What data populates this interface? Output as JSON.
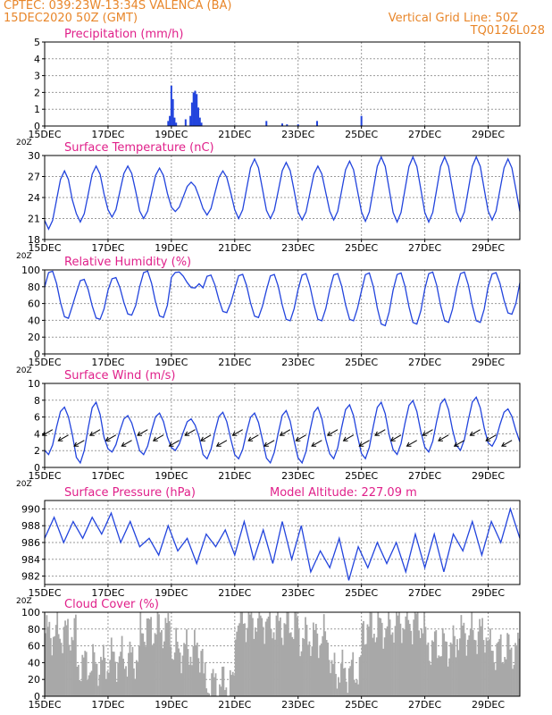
{
  "header": {
    "line1_left": "CPTEC:   039:23W-13:34S   VALENCA (BA)",
    "line2_left": "15DEC2020 50Z (GMT)",
    "line2_right": "Vertical Grid Line: 50Z",
    "line3_right": "TQ0126L028"
  },
  "colors": {
    "header": "#e8862a",
    "title": "#e0208a",
    "series": "#2244dd",
    "cloud": "#a8a8a8",
    "grid": "#9a9a9a"
  },
  "x_axis": {
    "tick_labels": [
      "15DEC",
      "17DEC",
      "19DEC",
      "21DEC",
      "23DEC",
      "25DEC",
      "27DEC",
      "29DEC"
    ],
    "tick_days": [
      0,
      2,
      4,
      6,
      8,
      10,
      12,
      14
    ],
    "xlim_days": [
      0,
      15
    ],
    "cut_label": "20Z"
  },
  "chart_data": [
    {
      "id": "precip",
      "type": "bar",
      "title": "Precipitation (mm/h)",
      "ylim": [
        0,
        5
      ],
      "yticks": [
        0,
        1,
        2,
        3,
        4,
        5
      ],
      "x_days": [
        3.9,
        3.95,
        4.0,
        4.05,
        4.1,
        4.15,
        4.45,
        4.6,
        4.65,
        4.7,
        4.75,
        4.8,
        4.85,
        4.9,
        4.95,
        7.0,
        7.5,
        7.65,
        8.0,
        8.6,
        10.0
      ],
      "values": [
        0.3,
        0.6,
        2.4,
        1.6,
        0.5,
        0.2,
        0.4,
        0.6,
        1.4,
        2.0,
        2.1,
        1.9,
        1.1,
        0.5,
        0.2,
        0.3,
        0.15,
        0.1,
        0.1,
        0.3,
        0.6
      ]
    },
    {
      "id": "temp",
      "type": "line",
      "title": "Surface Temperature (nC)",
      "ylim": [
        18,
        30
      ],
      "yticks": [
        18,
        21,
        24,
        27,
        30
      ],
      "daily": {
        "min": [
          19.5,
          20.5,
          21.2,
          21.0,
          22.0,
          21.5,
          21.0,
          21.0,
          20.8,
          20.8,
          20.6,
          20.5,
          20.5,
          20.6,
          20.8
        ],
        "max": [
          27.8,
          28.5,
          28.5,
          28.2,
          26.2,
          27.8,
          29.5,
          29.0,
          28.5,
          29.2,
          29.8,
          29.8,
          29.8,
          29.8,
          29.5
        ],
        "peak_hour_fraction": 0.625
      }
    },
    {
      "id": "rh",
      "type": "line",
      "title": "Relative Humidity (%)",
      "ylim": [
        0,
        100
      ],
      "yticks": [
        0,
        20,
        40,
        60,
        80,
        100
      ],
      "daily": {
        "min": [
          41,
          40,
          45,
          42,
          78,
          48,
          42,
          38,
          38,
          38,
          32,
          34,
          36,
          36,
          46
        ],
        "max": [
          100,
          90,
          92,
          100,
          98,
          95,
          96,
          96,
          97,
          97,
          98,
          98,
          99,
          99,
          98
        ],
        "peak_hour_fraction": 0.2
      }
    },
    {
      "id": "wind",
      "type": "line",
      "title": "Surface Wind (m/s)",
      "ylim": [
        0,
        10
      ],
      "yticks": [
        0,
        2,
        4,
        6,
        8,
        10
      ],
      "daily": {
        "min": [
          1.5,
          0.5,
          1.8,
          1.5,
          2.0,
          1.0,
          1.0,
          0.5,
          0.5,
          1.0,
          1.0,
          1.5,
          1.8,
          2.0,
          2.5
        ],
        "max": [
          7.2,
          7.8,
          6.2,
          6.5,
          5.8,
          6.6,
          6.5,
          6.8,
          7.2,
          7.5,
          7.8,
          8.0,
          8.2,
          8.4,
          7.0
        ],
        "peak_hour_fraction": 0.6
      },
      "arrows": {
        "count": 30,
        "y_value": 4.5,
        "direction_deg": 210,
        "length": 13
      }
    },
    {
      "id": "pressure",
      "type": "line",
      "title": "Surface Pressure (hPa)",
      "annotation": "Model Altitude: 227.09  m",
      "ylim": [
        981,
        991
      ],
      "yticks": [
        982,
        984,
        986,
        988,
        990
      ],
      "series": [
        {
          "x_days": [
            0,
            0.3,
            0.6,
            0.9,
            1.2,
            1.5,
            1.8,
            2.1,
            2.4,
            2.7,
            3.0,
            3.3,
            3.6,
            3.9,
            4.2,
            4.5,
            4.8,
            5.1,
            5.4,
            5.7,
            6.0,
            6.3,
            6.6,
            6.9,
            7.2,
            7.5,
            7.8,
            8.1,
            8.4,
            8.7,
            9.0,
            9.3,
            9.6,
            9.9,
            10.2,
            10.5,
            10.8,
            11.1,
            11.4,
            11.7,
            12.0,
            12.3,
            12.6,
            12.9,
            13.2,
            13.5,
            13.8,
            14.1,
            14.4,
            14.7,
            15.0
          ],
          "values": [
            986.5,
            989.0,
            986.0,
            988.5,
            986.5,
            989.0,
            987.0,
            989.5,
            986.0,
            988.5,
            985.5,
            986.5,
            984.5,
            988.0,
            985.0,
            986.5,
            983.5,
            987.0,
            985.5,
            987.5,
            984.5,
            988.5,
            984.0,
            987.5,
            983.5,
            988.5,
            984.0,
            988.0,
            982.5,
            985.0,
            983.0,
            986.5,
            981.5,
            985.5,
            983.0,
            986.0,
            983.5,
            986.0,
            982.5,
            987.0,
            983.0,
            987.0,
            982.5,
            987.0,
            985.0,
            988.5,
            984.5,
            988.5,
            986.0,
            990.0,
            986.5
          ]
        }
      ]
    },
    {
      "id": "cloud",
      "type": "bar",
      "title": "Cloud Cover (%)",
      "ylim": [
        0,
        100
      ],
      "yticks": [
        0,
        20,
        40,
        60,
        80,
        100
      ],
      "daily_mean": [
        75,
        38,
        45,
        80,
        55,
        15,
        90,
        85,
        70,
        30,
        82,
        88,
        60,
        75,
        55
      ]
    }
  ]
}
